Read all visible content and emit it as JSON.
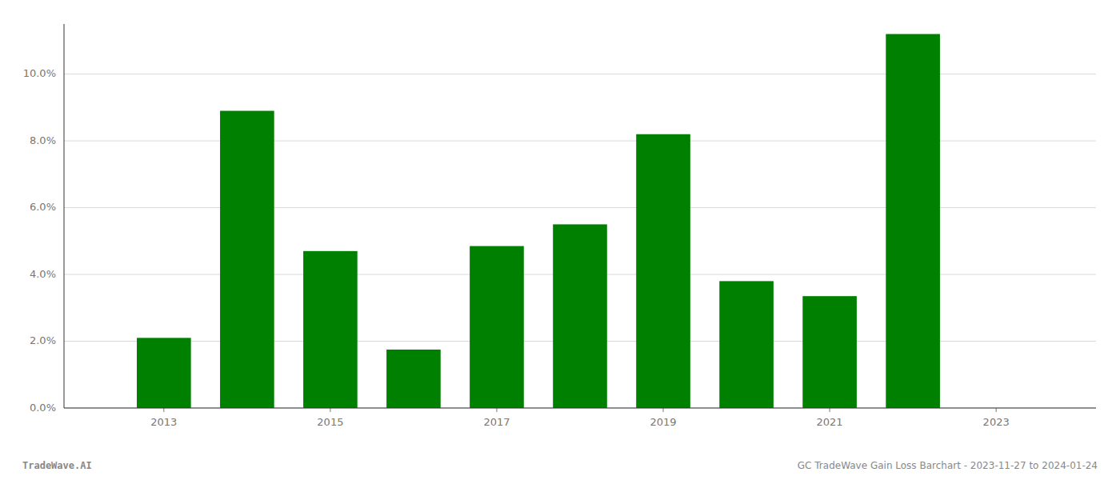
{
  "chart_data": {
    "type": "bar",
    "x": [
      2013,
      2014,
      2015,
      2016,
      2017,
      2018,
      2019,
      2020,
      2021,
      2022
    ],
    "values": [
      0.021,
      0.089,
      0.047,
      0.0175,
      0.0485,
      0.055,
      0.082,
      0.038,
      0.0335,
      0.112
    ],
    "color": "#008000",
    "xlim": [
      2011.8,
      2024.2
    ],
    "xticks": [
      2013,
      2015,
      2017,
      2019,
      2021,
      2023
    ],
    "ylim": [
      0,
      0.115
    ],
    "yticks": [
      {
        "value": 0.0,
        "label": "0.0%"
      },
      {
        "value": 0.02,
        "label": "2.0%"
      },
      {
        "value": 0.04,
        "label": "4.0%"
      },
      {
        "value": 0.06,
        "label": "6.0%"
      },
      {
        "value": 0.08,
        "label": "8.0%"
      },
      {
        "value": 0.1,
        "label": "10.0%"
      }
    ],
    "grid": true,
    "annotations": [
      "TradeWave.AI",
      "GC TradeWave Gain Loss Barchart - 2023-11-27 to 2024-01-24"
    ]
  }
}
